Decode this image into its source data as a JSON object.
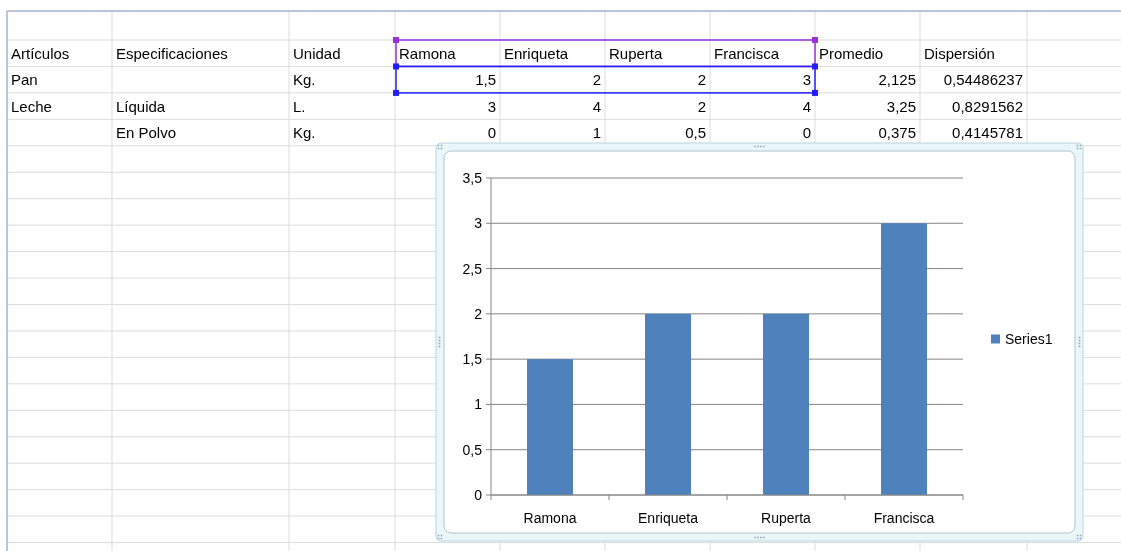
{
  "chart_data": [
    {
      "type": "other",
      "categories": [
        "Artículos",
        "Especificaciones",
        "Unidad",
        "Ramona",
        "Enriqueta",
        "Ruperta",
        "Francisca",
        "Promedio",
        "Dispersión"
      ],
      "cell_labels": [
        [
          "Pan",
          null,
          "Kg.",
          "1,5",
          "2",
          "2",
          "3",
          "2,125",
          "0,54486237"
        ],
        [
          "Leche",
          "Líquida",
          "L.",
          "3",
          "4",
          "2",
          "4",
          "3,25",
          "0,8291562"
        ],
        [
          null,
          "En Polvo",
          "Kg.",
          "0",
          "1",
          "0,5",
          "0",
          "0,375",
          "0,4145781"
        ]
      ]
    },
    {
      "type": "bar",
      "categories": [
        "Ramona",
        "Enriqueta",
        "Ruperta",
        "Francisca"
      ],
      "series": [
        {
          "name": "Series1",
          "color": "#4f81bd",
          "values": [
            1.5,
            2,
            2,
            3
          ]
        }
      ],
      "ylim": [
        0,
        3.5
      ],
      "yticks": [
        0,
        {
          "value": 0.5,
          "label": "0,5"
        },
        1,
        {
          "value": 1.5,
          "label": "1,5"
        },
        2,
        {
          "value": 2.5,
          "label": "2,5"
        },
        3,
        {
          "value": 3.5,
          "label": "3,5"
        }
      ],
      "grid": "y",
      "legend": "right"
    }
  ]
}
